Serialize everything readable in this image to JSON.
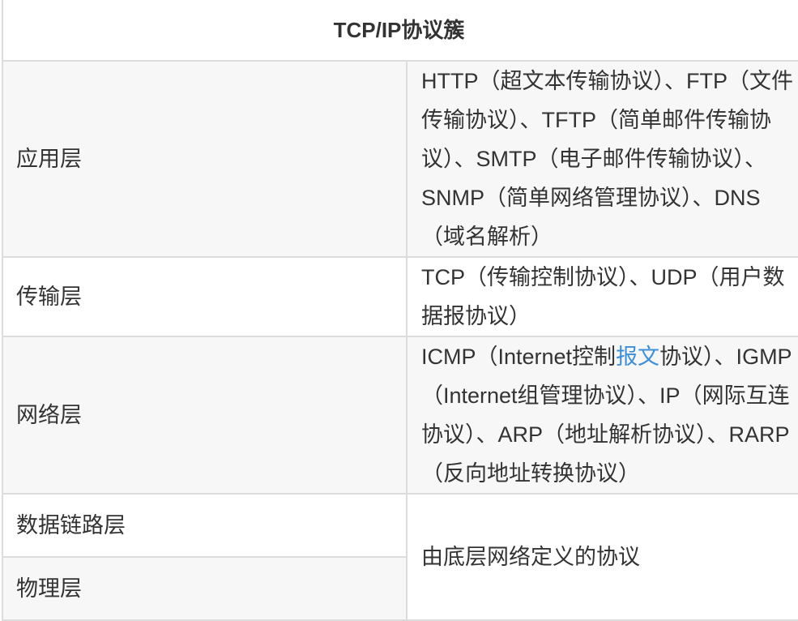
{
  "table": {
    "title": "TCP/IP协议簇",
    "rows": [
      {
        "layer": "应用层",
        "content": "HTTP（超文本传输协议）、FTP（文件传输协议）、TFTP（简单邮件传输协议）、SMTP（电子邮件传输协议）、SNMP（简单网络管理协议）、DNS（域名解析）"
      },
      {
        "layer": "传输层",
        "content": "TCP（传输控制协议）、UDP（用户数据报协议）"
      },
      {
        "layer": "网络层",
        "content_before": "ICMP（Internet控制",
        "content_link": "报文",
        "content_after": "协议）、IGMP（Internet组管理协议）、IP（网际互连协议）、ARP（地址解析协议）、RARP（反向地址转换协议）"
      },
      {
        "layer": "数据链路层",
        "content": "由底层网络定义的协议"
      },
      {
        "layer": "物理层"
      }
    ]
  },
  "colors": {
    "link": "#3d8fd8",
    "stripe": "#f7f7f7",
    "border": "#dcdcdc"
  }
}
